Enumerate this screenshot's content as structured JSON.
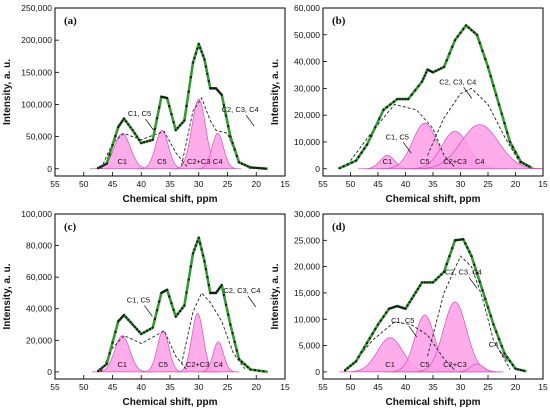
{
  "chart_data": [
    {
      "type": "line",
      "panel_label": "(a)",
      "xlabel": "Chemical shift, ppm",
      "ylabel": "Intensity, a. u.",
      "xlim": [
        55,
        15
      ],
      "ylim": [
        0,
        250000
      ],
      "xticks": [
        55,
        50,
        45,
        40,
        35,
        30,
        25,
        20,
        15
      ],
      "yticks": [
        0,
        50000,
        100000,
        150000,
        200000,
        250000
      ],
      "ytick_labels": [
        "0",
        "50,000",
        "100,000",
        "150,000",
        "200,000",
        "250,000"
      ],
      "fit_peaks": [
        {
          "label": "C1",
          "center": 43.3,
          "height": 55000,
          "width": 1.4
        },
        {
          "label": "C5",
          "center": 36.4,
          "height": 60000,
          "width": 1.1
        },
        {
          "label": "C2+C3",
          "center": 30.0,
          "height": 108000,
          "width": 1.2
        },
        {
          "label": "C4",
          "center": 26.7,
          "height": 55000,
          "width": 1.0
        }
      ],
      "dashed_envelopes": [
        {
          "name": "C1, C5",
          "points": [
            [
              47,
              0
            ],
            [
              45,
              40000
            ],
            [
              43,
              55000
            ],
            [
              40,
              45000
            ],
            [
              38,
              52000
            ],
            [
              36,
              58000
            ],
            [
              34,
              25000
            ],
            [
              32,
              3000
            ]
          ]
        },
        {
          "name": "C2, C3, C4",
          "points": [
            [
              33,
              5000
            ],
            [
              31,
              90000
            ],
            [
              29.5,
              110000
            ],
            [
              28,
              75000
            ],
            [
              27,
              60000
            ],
            [
              25,
              55000
            ],
            [
              23,
              10000
            ],
            [
              21,
              0
            ]
          ]
        }
      ],
      "measured_points": [
        [
          47.5,
          1000
        ],
        [
          46,
          8000
        ],
        [
          44,
          65000
        ],
        [
          43,
          78000
        ],
        [
          41.5,
          60000
        ],
        [
          40,
          40000
        ],
        [
          38,
          45000
        ],
        [
          36.5,
          112000
        ],
        [
          35.5,
          110000
        ],
        [
          34,
          60000
        ],
        [
          32.5,
          75000
        ],
        [
          31,
          165000
        ],
        [
          30,
          194000
        ],
        [
          29,
          170000
        ],
        [
          28,
          125000
        ],
        [
          27,
          125000
        ],
        [
          26,
          115000
        ],
        [
          24.5,
          50000
        ],
        [
          23,
          10000
        ],
        [
          21,
          2000
        ],
        [
          19.5,
          1000
        ],
        [
          18,
          0
        ]
      ],
      "annotations": [
        {
          "text": "C1, C5",
          "x": 40.3,
          "y": 82000
        },
        {
          "text": "C2, C3, C4",
          "x": 22.8,
          "y": 88000
        }
      ]
    },
    {
      "type": "line",
      "panel_label": "(b)",
      "xlabel": "Chemical shift, ppm",
      "ylabel": "Intensity, a. u.",
      "xlim": [
        55,
        15
      ],
      "ylim": [
        0,
        60000
      ],
      "xticks": [
        55,
        50,
        45,
        40,
        35,
        30,
        25,
        20,
        15
      ],
      "yticks": [
        0,
        10000,
        20000,
        30000,
        40000,
        50000,
        60000
      ],
      "ytick_labels": [
        "0",
        "10,000",
        "20,000",
        "30,000",
        "40,000",
        "50,000",
        "60,000"
      ],
      "fit_peaks": [
        {
          "label": "C1",
          "center": 43.3,
          "height": 5000,
          "width": 1.3
        },
        {
          "label": "C5",
          "center": 36.5,
          "height": 17000,
          "width": 2.2
        },
        {
          "label": "C2+C3",
          "center": 31.0,
          "height": 14000,
          "width": 2.4
        },
        {
          "label": "C4",
          "center": 26.5,
          "height": 16500,
          "width": 3.4
        }
      ],
      "dashed_envelopes": [
        {
          "name": "C1, C5",
          "points": [
            [
              50,
              3000
            ],
            [
              46,
              14000
            ],
            [
              42,
              24000
            ],
            [
              38,
              22000
            ],
            [
              35,
              15000
            ],
            [
              33,
              5000
            ],
            [
              31,
              500
            ]
          ]
        },
        {
          "name": "C2, C3, C4",
          "points": [
            [
              36,
              5000
            ],
            [
              33,
              19000
            ],
            [
              30,
              28000
            ],
            [
              28,
              30000
            ],
            [
              25,
              24000
            ],
            [
              22,
              12000
            ],
            [
              19,
              1500
            ]
          ]
        }
      ],
      "measured_points": [
        [
          52,
          200
        ],
        [
          49,
          3000
        ],
        [
          47,
          9000
        ],
        [
          44,
          22000
        ],
        [
          41.5,
          26000
        ],
        [
          39.5,
          26000
        ],
        [
          37,
          32500
        ],
        [
          36,
          37000
        ],
        [
          35,
          36000
        ],
        [
          33,
          38000
        ],
        [
          31,
          48000
        ],
        [
          29,
          53500
        ],
        [
          27,
          50000
        ],
        [
          25,
          38000
        ],
        [
          23,
          24000
        ],
        [
          21,
          10000
        ],
        [
          19,
          2500
        ],
        [
          17,
          300
        ]
      ],
      "annotations": [
        {
          "text": "C1, C5",
          "x": 41.5,
          "y": 11000
        },
        {
          "text": "C2, C3, C4",
          "x": 30.5,
          "y": 31500
        }
      ]
    },
    {
      "type": "line",
      "panel_label": "(c)",
      "xlabel": "Chemical shift, ppm",
      "ylabel": "Intensity, a. u.",
      "xlim": [
        55,
        15
      ],
      "ylim": [
        0,
        100000
      ],
      "xticks": [
        55,
        50,
        45,
        40,
        35,
        30,
        25,
        20,
        15
      ],
      "yticks": [
        0,
        20000,
        40000,
        60000,
        80000,
        100000
      ],
      "ytick_labels": [
        "0",
        "20,000",
        "40,000",
        "60,000",
        "80,000",
        "100,000"
      ],
      "fit_peaks": [
        {
          "label": "C1",
          "center": 43.3,
          "height": 23000,
          "width": 1.3
        },
        {
          "label": "C5",
          "center": 36.2,
          "height": 26000,
          "width": 1.0
        },
        {
          "label": "C2+C3",
          "center": 30.2,
          "height": 37000,
          "width": 1.0
        },
        {
          "label": "C4",
          "center": 26.6,
          "height": 19000,
          "width": 0.9
        }
      ],
      "dashed_envelopes": [
        {
          "name": "C1, C5",
          "points": [
            [
              47,
              0
            ],
            [
              45,
              15000
            ],
            [
              43,
              23000
            ],
            [
              40,
              18000
            ],
            [
              38,
              22000
            ],
            [
              36,
              26000
            ],
            [
              34,
              10000
            ],
            [
              32,
              1000
            ]
          ]
        },
        {
          "name": "C2, C3, C4",
          "points": [
            [
              33,
              5000
            ],
            [
              31,
              38000
            ],
            [
              29.5,
              50000
            ],
            [
              28,
              44000
            ],
            [
              26,
              32000
            ],
            [
              24,
              12000
            ],
            [
              22,
              2000
            ]
          ]
        }
      ],
      "measured_points": [
        [
          47.5,
          500
        ],
        [
          46,
          5000
        ],
        [
          44,
          32000
        ],
        [
          43,
          36000
        ],
        [
          41.5,
          30000
        ],
        [
          40,
          24000
        ],
        [
          38,
          28000
        ],
        [
          36.5,
          50000
        ],
        [
          35.5,
          52000
        ],
        [
          34,
          35000
        ],
        [
          32.5,
          42000
        ],
        [
          31,
          75000
        ],
        [
          30,
          85000
        ],
        [
          29,
          70000
        ],
        [
          28,
          50000
        ],
        [
          27,
          50000
        ],
        [
          26,
          55000
        ],
        [
          24.5,
          30000
        ],
        [
          23,
          8000
        ],
        [
          21,
          1500
        ],
        [
          18,
          0
        ]
      ],
      "annotations": [
        {
          "text": "C1, C5",
          "x": 40.5,
          "y": 44000
        },
        {
          "text": "C2, C3, C4",
          "x": 22.5,
          "y": 50000
        }
      ]
    },
    {
      "type": "line",
      "panel_label": "(d)",
      "xlabel": "Chemical shift, ppm",
      "ylabel": "Intensity, a. u.",
      "xlim": [
        55,
        15
      ],
      "ylim": [
        0,
        30000
      ],
      "xticks": [
        55,
        50,
        45,
        40,
        35,
        30,
        25,
        20,
        15
      ],
      "yticks": [
        0,
        5000,
        10000,
        15000,
        20000,
        25000,
        30000
      ],
      "ytick_labels": [
        "0",
        "5,000",
        "10,000",
        "15,000",
        "20,000",
        "25,000",
        "30,000"
      ],
      "fit_peaks": [
        {
          "label": "C1",
          "center": 42.8,
          "height": 6500,
          "width": 2.3
        },
        {
          "label": "C5",
          "center": 36.5,
          "height": 10800,
          "width": 1.8
        },
        {
          "label": "C2+C3",
          "center": 31.0,
          "height": 13300,
          "width": 2.1
        },
        {
          "label": "C4",
          "center": 27.0,
          "height": 1500,
          "width": 1.2
        }
      ],
      "dashed_envelopes": [
        {
          "name": "C1, C5",
          "points": [
            [
              50,
              1000
            ],
            [
              46,
              6000
            ],
            [
              42,
              9500
            ],
            [
              39,
              9000
            ],
            [
              36,
              7000
            ],
            [
              33,
              2500
            ],
            [
              31,
              300
            ]
          ]
        },
        {
          "name": "C2, C3, C4",
          "points": [
            [
              36,
              3000
            ],
            [
              33,
              15000
            ],
            [
              30,
              22000
            ],
            [
              28,
              20000
            ],
            [
              26,
              14000
            ],
            [
              24,
              6000
            ],
            [
              21,
              500
            ]
          ]
        }
      ],
      "measured_points": [
        [
          51,
          300
        ],
        [
          49,
          2000
        ],
        [
          47,
          5500
        ],
        [
          45,
          9000
        ],
        [
          43,
          12000
        ],
        [
          41.5,
          12500
        ],
        [
          40,
          12000
        ],
        [
          38.5,
          14500
        ],
        [
          37,
          17000
        ],
        [
          35,
          17000
        ],
        [
          33,
          19000
        ],
        [
          31,
          25000
        ],
        [
          29.5,
          25200
        ],
        [
          28,
          22000
        ],
        [
          26,
          15500
        ],
        [
          24,
          9000
        ],
        [
          22,
          3500
        ],
        [
          20,
          600
        ],
        [
          18,
          100
        ]
      ],
      "annotations": [
        {
          "text": "C1, C5",
          "x": 40.5,
          "y": 9300
        },
        {
          "text": "C2, C3, C4",
          "x": 29.5,
          "y": 18500
        },
        {
          "text": "C4",
          "x": 24.0,
          "y": 4700
        }
      ]
    }
  ]
}
